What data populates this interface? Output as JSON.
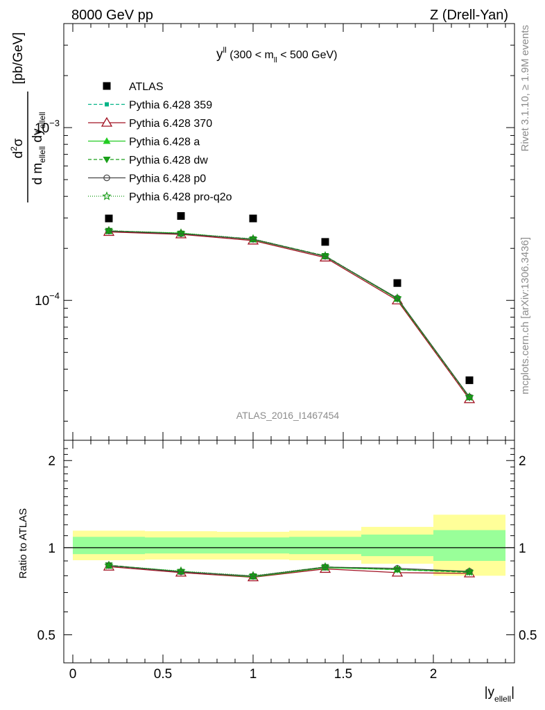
{
  "header": {
    "left": "8000 GeV pp",
    "right": "Z (Drell-Yan)"
  },
  "side": {
    "rivet": "Rivet 3.1.10, ≥ 1.9M events",
    "source": "mcplots.cern.ch [arXiv:1306.3436]"
  },
  "plot_title": {
    "main": "y",
    "sup": "ll",
    "rest_open": " (300 < m",
    "sub": "ll",
    "rest_close": " < 500 GeV)"
  },
  "watermark": "ATLAS_2016_I1467454",
  "ylabel": {
    "num_d": "d",
    "num_sup": "2",
    "num_sigma": "σ",
    "den": "d m",
    "den_sub": "ellell",
    "den_dy": " dy",
    "den_dy_sub": "ellell",
    "units": "[pb/GeV]"
  },
  "ratio_ylabel": "Ratio to ATLAS",
  "xlabel": {
    "open": "|y",
    "sub": "ellell",
    "close": "|"
  },
  "top_ticks": [
    {
      "value": 0.001,
      "base": "10",
      "exp": "−3"
    },
    {
      "value": 0.0001,
      "base": "10",
      "exp": "−4"
    }
  ],
  "ratio_ticks": [
    {
      "value": 0.5,
      "label": "0.5"
    },
    {
      "value": 1,
      "label": "1"
    },
    {
      "value": 2,
      "label": "2"
    }
  ],
  "x_ticks": [
    {
      "value": 0,
      "label": "0"
    },
    {
      "value": 0.5,
      "label": "0.5"
    },
    {
      "value": 1,
      "label": "1"
    },
    {
      "value": 1.5,
      "label": "1.5"
    },
    {
      "value": 2,
      "label": "2"
    }
  ],
  "chart_data": {
    "type": "scatter",
    "x_range": [
      -0.05,
      2.45
    ],
    "top_y_range": [
      1.55e-05,
      0.004
    ],
    "top_y_scale": "log",
    "ratio_y_range": [
      0.4,
      2.35
    ],
    "ratio_y_scale": "log",
    "legend_position": "top-left",
    "bins": [
      [
        0,
        0.4
      ],
      [
        0.4,
        0.8
      ],
      [
        0.8,
        1.2
      ],
      [
        1.2,
        1.6
      ],
      [
        1.6,
        2.0
      ],
      [
        2.0,
        2.4
      ]
    ],
    "x": [
      0.2,
      0.6,
      1.0,
      1.4,
      1.8,
      2.2
    ],
    "data": {
      "name": "ATLAS",
      "values": [
        0.000298,
        0.000308,
        0.000298,
        0.000218,
        0.000126,
        3.45e-05
      ]
    },
    "bands": {
      "inner_color": "#99ff99",
      "outer_color": "#ffff99",
      "inner": [
        [
          0.95,
          1.09
        ],
        [
          0.955,
          1.085
        ],
        [
          0.955,
          1.085
        ],
        [
          0.95,
          1.09
        ],
        [
          0.935,
          1.11
        ],
        [
          0.9,
          1.15
        ]
      ],
      "outer": [
        [
          0.905,
          1.145
        ],
        [
          0.91,
          1.14
        ],
        [
          0.91,
          1.135
        ],
        [
          0.905,
          1.145
        ],
        [
          0.88,
          1.18
        ],
        [
          0.8,
          1.3
        ]
      ]
    },
    "series": [
      {
        "name": "Pythia 6.428 359",
        "color": "#00b386",
        "dash": "5,3",
        "marker": "square-small",
        "values": [
          0.000252,
          0.000244,
          0.000226,
          0.00018,
          0.000102,
          2.74e-05
        ],
        "ratio": [
          0.865,
          0.827,
          0.797,
          0.855,
          0.84,
          0.822
        ]
      },
      {
        "name": "Pythia 6.428 370",
        "color": "#a01020",
        "dash": "",
        "marker": "triangle-open",
        "values": [
          0.000249,
          0.000241,
          0.000222,
          0.000177,
          0.0001,
          2.68e-05
        ],
        "ratio": [
          0.86,
          0.82,
          0.79,
          0.845,
          0.82,
          0.815
        ]
      },
      {
        "name": "Pythia 6.428 a",
        "color": "#22cc22",
        "dash": "",
        "marker": "triangle-filled",
        "values": [
          0.000252,
          0.000245,
          0.000225,
          0.00018,
          0.000102,
          2.75e-05
        ],
        "ratio": [
          0.868,
          0.828,
          0.793,
          0.853,
          0.84,
          0.825
        ]
      },
      {
        "name": "Pythia 6.428 dw",
        "color": "#1aa01a",
        "dash": "5,3",
        "marker": "triangle-down",
        "values": [
          0.000253,
          0.000244,
          0.000226,
          0.000181,
          0.000102,
          2.74e-05
        ],
        "ratio": [
          0.87,
          0.826,
          0.797,
          0.858,
          0.84,
          0.823
        ]
      },
      {
        "name": "Pythia 6.428 p0",
        "color": "#444444",
        "dash": "",
        "marker": "circle-open",
        "values": [
          0.000252,
          0.000243,
          0.000226,
          0.00018,
          0.000103,
          2.76e-05
        ],
        "ratio": [
          0.868,
          0.825,
          0.797,
          0.857,
          0.848,
          0.828
        ]
      },
      {
        "name": "Pythia 6.428 pro-q2o",
        "color": "#119911",
        "dash": "1,2",
        "marker": "star-open",
        "values": [
          0.000253,
          0.000245,
          0.000227,
          0.000181,
          0.000103,
          2.76e-05
        ],
        "ratio": [
          0.868,
          0.83,
          0.8,
          0.858,
          0.842,
          0.825
        ]
      }
    ]
  }
}
